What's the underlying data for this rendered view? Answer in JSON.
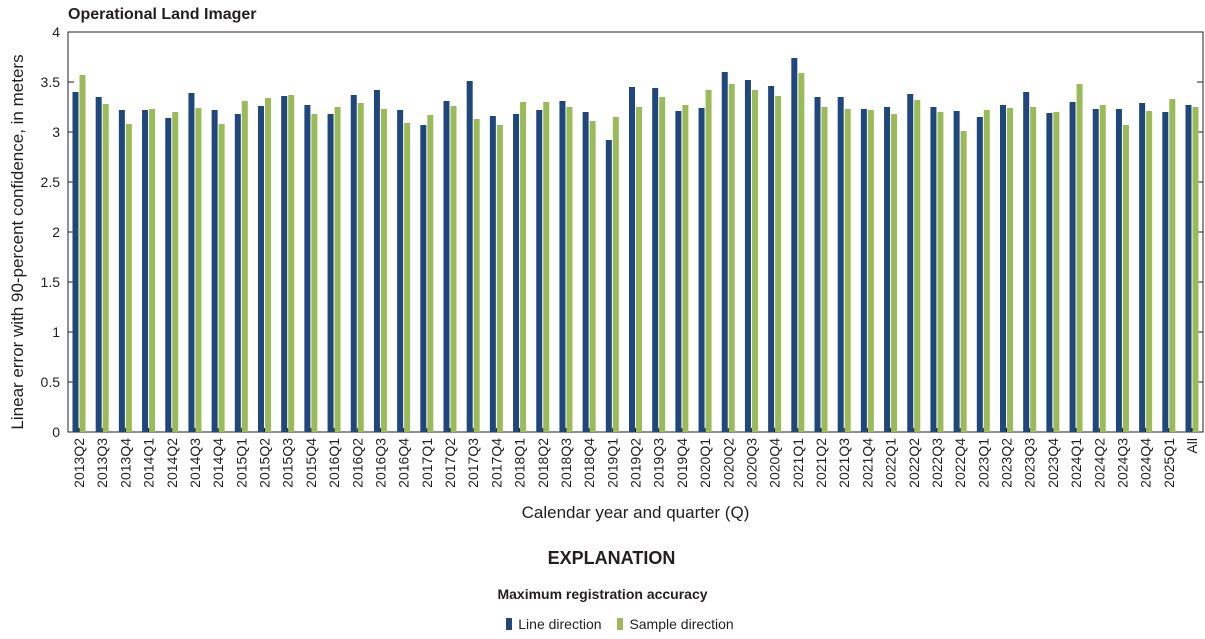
{
  "chart_data": {
    "type": "bar",
    "title": "Operational Land Imager",
    "xlabel": "Calendar year and quarter (Q)",
    "ylabel": "Linear error with 90-percent confidence, in meters",
    "ylim": [
      0,
      4
    ],
    "yticks": [
      "0",
      "0.5",
      "1",
      "1.5",
      "2",
      "2.5",
      "3",
      "3.5",
      "4"
    ],
    "grid": false,
    "categories": [
      "2013Q2",
      "2013Q3",
      "2013Q4",
      "2014Q1",
      "2014Q2",
      "2014Q3",
      "2014Q4",
      "2015Q1",
      "2015Q2",
      "2015Q3",
      "2015Q4",
      "2016Q1",
      "2016Q2",
      "2016Q3",
      "2016Q4",
      "2017Q1",
      "2017Q2",
      "2017Q3",
      "2017Q4",
      "2018Q1",
      "2018Q2",
      "2018Q3",
      "2018Q4",
      "2019Q1",
      "2019Q2",
      "2019Q3",
      "2019Q4",
      "2020Q1",
      "2020Q2",
      "2020Q3",
      "2020Q4",
      "2021Q1",
      "2021Q2",
      "2021Q3",
      "2021Q4",
      "2022Q1",
      "2022Q2",
      "2022Q3",
      "2022Q4",
      "2023Q1",
      "2023Q2",
      "2023Q3",
      "2023Q4",
      "2024Q1",
      "2024Q2",
      "2024Q3",
      "2024Q4",
      "2025Q1",
      "All"
    ],
    "series": [
      {
        "name": "Line direction",
        "color": "#1f477d",
        "values": [
          3.4,
          3.35,
          3.22,
          3.22,
          3.14,
          3.39,
          3.22,
          3.18,
          3.26,
          3.36,
          3.27,
          3.18,
          3.37,
          3.42,
          3.22,
          3.07,
          3.31,
          3.51,
          3.16,
          3.18,
          3.22,
          3.31,
          3.2,
          2.92,
          3.45,
          3.44,
          3.21,
          3.24,
          3.6,
          3.52,
          3.46,
          3.74,
          3.35,
          3.35,
          3.23,
          3.25,
          3.38,
          3.25,
          3.21,
          3.15,
          3.27,
          3.4,
          3.19,
          3.3,
          3.23,
          3.23,
          3.29,
          3.2,
          3.27
        ]
      },
      {
        "name": "Sample direction",
        "color": "#9bbb59",
        "values": [
          3.57,
          3.28,
          3.08,
          3.23,
          3.2,
          3.24,
          3.08,
          3.31,
          3.34,
          3.37,
          3.18,
          3.25,
          3.29,
          3.23,
          3.09,
          3.17,
          3.26,
          3.13,
          3.07,
          3.3,
          3.3,
          3.25,
          3.11,
          3.15,
          3.25,
          3.35,
          3.27,
          3.42,
          3.48,
          3.42,
          3.36,
          3.59,
          3.25,
          3.23,
          3.22,
          3.18,
          3.32,
          3.2,
          3.01,
          3.22,
          3.24,
          3.25,
          3.2,
          3.48,
          3.27,
          3.07,
          3.21,
          3.33,
          3.25
        ]
      }
    ],
    "legend": {
      "heading": "EXPLANATION",
      "title": "Maximum registration accuracy",
      "placement": "bottom"
    }
  }
}
